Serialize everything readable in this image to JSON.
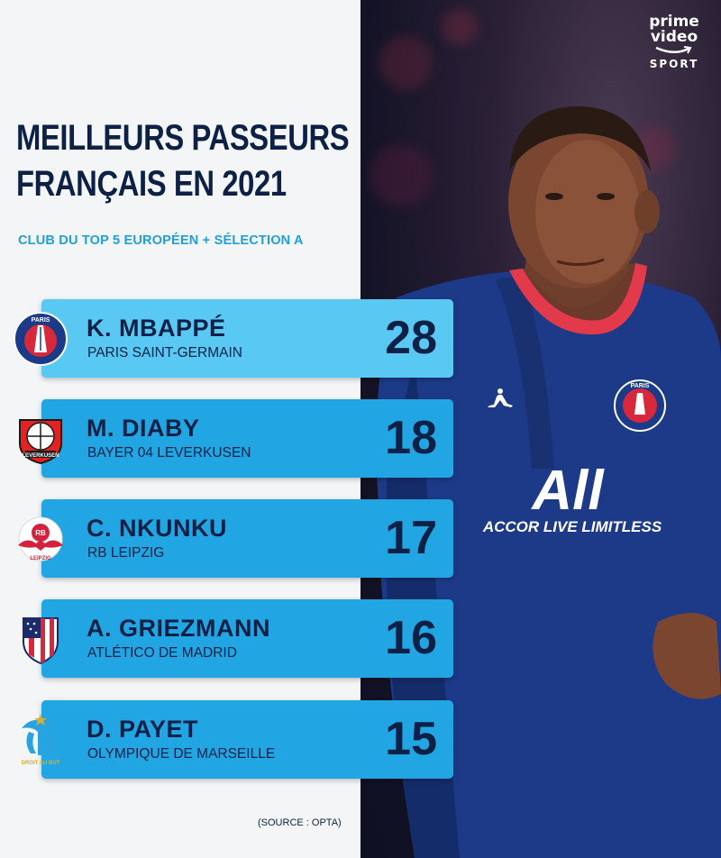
{
  "brand": {
    "line1": "prime",
    "line2": "video",
    "line3": "SPORT"
  },
  "title": {
    "line1": "MEILLEURS PASSEURS",
    "line2": "FRANÇAIS EN 2021"
  },
  "subtitle": "CLUB DU TOP 5 EUROPÉEN + SÉLECTION A",
  "players": [
    {
      "name": "K. MBAPPÉ",
      "club": "PARIS SAINT-GERMAIN",
      "assists": "28",
      "crest": "psg-crest-icon"
    },
    {
      "name": "M. DIABY",
      "club": "BAYER 04 LEVERKUSEN",
      "assists": "18",
      "crest": "bayer-leverkusen-crest-icon"
    },
    {
      "name": "C. NKUNKU",
      "club": "RB LEIPZIG",
      "assists": "17",
      "crest": "rb-leipzig-crest-icon"
    },
    {
      "name": "A. GRIEZMANN",
      "club": "ATLÉTICO DE MADRID",
      "assists": "16",
      "crest": "atletico-madrid-crest-icon"
    },
    {
      "name": "D. PAYET",
      "club": "OLYMPIQUE DE MARSEILLE",
      "assists": "15",
      "crest": "olympique-marseille-crest-icon"
    }
  ],
  "source": "(SOURCE : OPTA)",
  "colors": {
    "navy": "#0d2147",
    "accent_blue": "#1ea0dd",
    "row_blue": "#22a6e3",
    "row_highlight": "#59c8f2",
    "background": "#f4f5f7"
  }
}
